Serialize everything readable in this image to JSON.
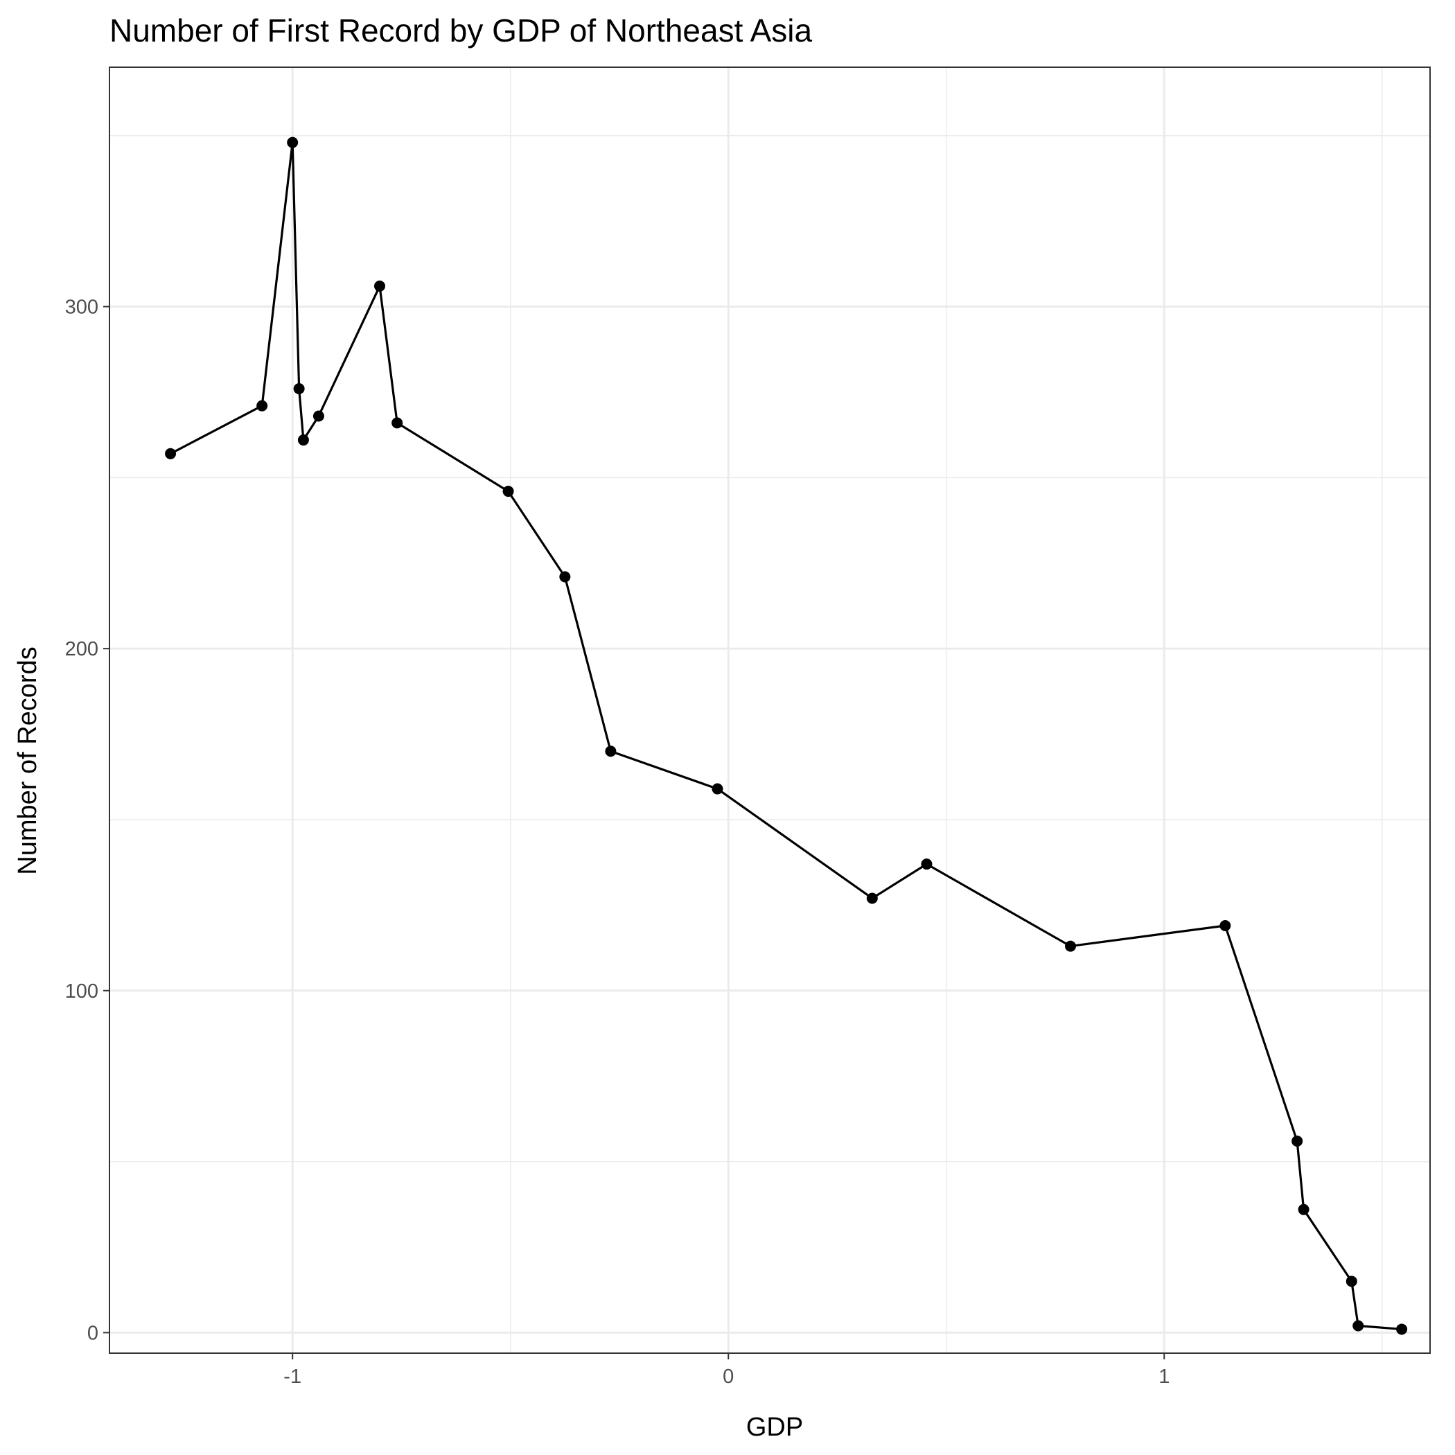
{
  "chart_data": {
    "type": "line",
    "title": "Number of First Record by GDP of Northeast Asia",
    "xlabel": "GDP",
    "ylabel": "Number of Records",
    "xlim": [
      -1.42,
      1.61
    ],
    "ylim": [
      -6,
      370
    ],
    "x_ticks": [
      -1,
      0,
      1
    ],
    "x_tick_labels": [
      "-1",
      "0",
      "1"
    ],
    "x_minor_ticks": [
      -0.5,
      0.5,
      1.5
    ],
    "y_ticks": [
      0,
      100,
      200,
      300
    ],
    "y_tick_labels": [
      "0",
      "100",
      "200",
      "300"
    ],
    "y_minor_ticks": [
      50,
      150,
      250,
      350
    ],
    "grid": true,
    "legend": "none",
    "colors": {
      "line": "#000000",
      "point": "#000000",
      "grid": "#ebebeb",
      "panel_border": "#333333",
      "tick_label": "#4d4d4d"
    },
    "series": [
      {
        "x": [
          -1.28,
          -1.07,
          -1.0,
          -0.985,
          -0.975,
          -0.94,
          -0.8,
          -0.76,
          -0.505,
          -0.375,
          -0.27,
          -0.025,
          0.33,
          0.455,
          0.785,
          1.14,
          1.305,
          1.32,
          1.43,
          1.445,
          1.545
        ],
        "y": [
          257,
          271,
          348,
          276,
          261,
          268,
          306,
          266,
          246,
          221,
          170,
          159,
          127,
          137,
          113,
          119,
          56,
          36,
          15,
          2,
          1
        ]
      }
    ]
  }
}
